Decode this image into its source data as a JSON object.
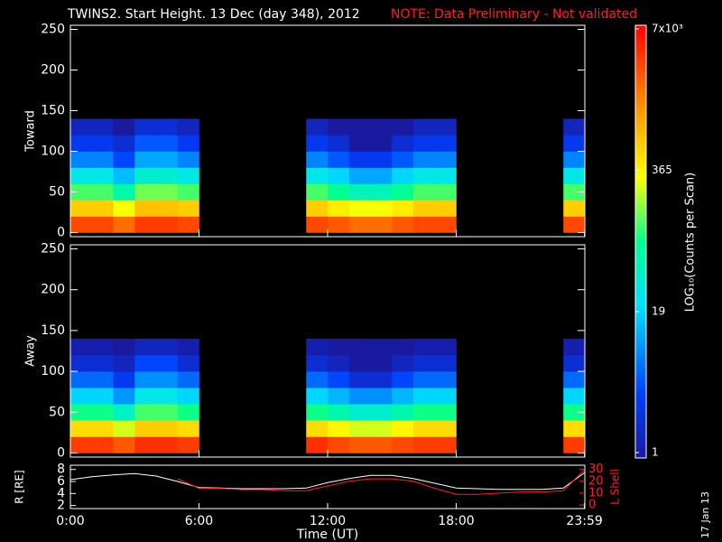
{
  "title": "TWINS2. Start Height. 13 Dec (day 348), 2012",
  "note": "NOTE: Data Preliminary - Not validated",
  "date_stamp": "17 Jan 13",
  "colorbar": {
    "label": "LOG₁₀(Counts per Scan)",
    "log": true,
    "clim": [
      1,
      7000
    ],
    "ticks": [
      1,
      19,
      365,
      {
        "value": 7000,
        "label": "7x10³"
      }
    ]
  },
  "chart_data": [
    {
      "type": "heatmap",
      "ylabel": "Toward",
      "xlim": [
        0,
        24
      ],
      "ylim": [
        -5,
        255
      ],
      "yticks": [
        0,
        50,
        100,
        150,
        200,
        250
      ],
      "xbins": [
        0,
        1,
        2,
        3,
        4,
        5,
        6,
        7,
        8,
        9,
        10,
        11,
        12,
        13,
        14,
        15,
        16,
        17,
        18,
        19,
        20,
        21,
        22,
        23,
        24
      ],
      "ybins": [
        0,
        20,
        40,
        60,
        80,
        100,
        120,
        140
      ],
      "z": [
        [
          3000,
          3000,
          2000,
          3500,
          3500,
          3000,
          null,
          null,
          null,
          null,
          null,
          3000,
          2500,
          2000,
          2000,
          2500,
          3000,
          3000,
          null,
          null,
          null,
          null,
          null,
          3000
        ],
        [
          600,
          600,
          300,
          700,
          700,
          600,
          null,
          null,
          null,
          null,
          null,
          600,
          400,
          300,
          300,
          400,
          600,
          600,
          null,
          null,
          null,
          null,
          null,
          600
        ],
        [
          120,
          120,
          60,
          150,
          150,
          120,
          null,
          null,
          null,
          null,
          null,
          120,
          80,
          50,
          50,
          80,
          120,
          120,
          null,
          null,
          null,
          null,
          null,
          120
        ],
        [
          30,
          30,
          15,
          40,
          40,
          30,
          null,
          null,
          null,
          null,
          null,
          30,
          20,
          12,
          12,
          20,
          30,
          30,
          null,
          null,
          null,
          null,
          null,
          30
        ],
        [
          8,
          8,
          4,
          12,
          12,
          8,
          null,
          null,
          null,
          null,
          null,
          8,
          5,
          3,
          3,
          5,
          8,
          8,
          null,
          null,
          null,
          null,
          null,
          8
        ],
        [
          3,
          3,
          2,
          5,
          5,
          3,
          null,
          null,
          null,
          null,
          null,
          3,
          2,
          1,
          1,
          2,
          3,
          3,
          null,
          null,
          null,
          null,
          null,
          3
        ],
        [
          1.5,
          1.5,
          1,
          2,
          2,
          1.5,
          null,
          null,
          null,
          null,
          null,
          1.5,
          1,
          1,
          1,
          1,
          1.5,
          1.5,
          null,
          null,
          null,
          null,
          null,
          1.5
        ]
      ]
    },
    {
      "type": "heatmap",
      "ylabel": "Away",
      "xlim": [
        0,
        24
      ],
      "ylim": [
        -5,
        255
      ],
      "yticks": [
        0,
        50,
        100,
        150,
        200,
        250
      ],
      "xbins": [
        0,
        1,
        2,
        3,
        4,
        5,
        6,
        7,
        8,
        9,
        10,
        11,
        12,
        13,
        14,
        15,
        16,
        17,
        18,
        19,
        20,
        21,
        22,
        23,
        24
      ],
      "ybins": [
        0,
        20,
        40,
        60,
        80,
        100,
        120,
        140
      ],
      "z": [
        [
          3500,
          3500,
          2500,
          4000,
          4000,
          3500,
          null,
          null,
          null,
          null,
          null,
          4000,
          3000,
          2500,
          2500,
          3000,
          3500,
          3500,
          null,
          null,
          null,
          null,
          null,
          3500
        ],
        [
          500,
          500,
          250,
          600,
          600,
          500,
          null,
          null,
          null,
          null,
          null,
          500,
          350,
          250,
          250,
          350,
          500,
          500,
          null,
          null,
          null,
          null,
          null,
          500
        ],
        [
          90,
          90,
          45,
          120,
          120,
          90,
          null,
          null,
          null,
          null,
          null,
          90,
          60,
          40,
          40,
          60,
          90,
          90,
          null,
          null,
          null,
          null,
          null,
          90
        ],
        [
          20,
          20,
          10,
          30,
          30,
          20,
          null,
          null,
          null,
          null,
          null,
          20,
          14,
          9,
          9,
          14,
          20,
          20,
          null,
          null,
          null,
          null,
          null,
          20
        ],
        [
          6,
          6,
          3,
          9,
          9,
          6,
          null,
          null,
          null,
          null,
          null,
          6,
          4,
          2,
          2,
          4,
          6,
          6,
          null,
          null,
          null,
          null,
          null,
          6
        ],
        [
          2,
          2,
          1.5,
          4,
          4,
          2,
          null,
          null,
          null,
          null,
          null,
          2,
          1.5,
          1,
          1,
          1.5,
          2,
          2,
          null,
          null,
          null,
          null,
          null,
          2
        ],
        [
          1.2,
          1.2,
          1,
          1.5,
          1.5,
          1.2,
          null,
          null,
          null,
          null,
          null,
          1.2,
          1,
          1,
          1,
          1,
          1.2,
          1.2,
          null,
          null,
          null,
          null,
          null,
          1.2
        ]
      ]
    },
    {
      "type": "line",
      "xlabel": "Time (UT)",
      "xlim": [
        0,
        24
      ],
      "ylim": [
        1.5,
        8.7
      ],
      "yticks": [
        2,
        4,
        6,
        8
      ],
      "y2lim": [
        -3,
        33.5
      ],
      "y2ticks": [
        0,
        10,
        20,
        30
      ],
      "xticks": [
        {
          "value": 0,
          "label": "0:00"
        },
        {
          "value": 6,
          "label": "6:00"
        },
        {
          "value": 12,
          "label": "12:00"
        },
        {
          "value": 18,
          "label": "18:00"
        },
        {
          "value": 23.983,
          "label": "23:59"
        }
      ],
      "x": [
        0,
        1,
        2,
        3,
        4,
        5,
        6,
        7,
        8,
        9,
        10,
        11,
        12,
        13,
        14,
        15,
        16,
        17,
        18,
        19,
        20,
        21,
        22,
        23,
        24
      ],
      "series": [
        {
          "name": "R [RE]",
          "color": "#ffffff",
          "values": [
            6.3,
            6.8,
            7.1,
            7.3,
            6.9,
            6.0,
            5.0,
            4.9,
            4.8,
            4.8,
            4.8,
            4.9,
            5.8,
            6.5,
            7.0,
            7.0,
            6.5,
            5.7,
            4.9,
            4.8,
            4.7,
            4.7,
            4.7,
            4.9,
            7.5
          ]
        },
        {
          "name": "L Shell",
          "color": "#ff2020",
          "axis": "y2",
          "values": [
            null,
            null,
            null,
            null,
            null,
            22,
            14,
            14,
            13,
            13,
            12,
            12,
            16,
            20,
            22,
            22,
            20,
            14,
            9,
            9,
            10,
            11,
            11,
            12,
            30
          ]
        }
      ]
    }
  ]
}
